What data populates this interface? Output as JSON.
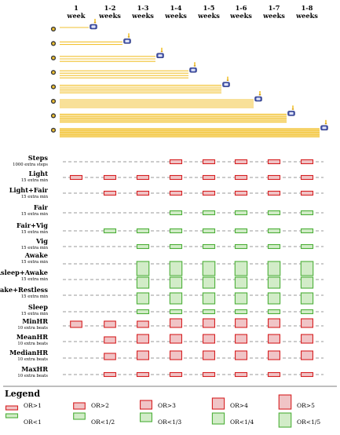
{
  "colors": {
    "timeline": "#f2c230",
    "clock": "#3f4fa8",
    "positive_stroke": "#d62022",
    "positive_fill": "#f0c4c6",
    "negative_stroke": "#4caf38",
    "negative_fill": "#d2ecc8",
    "dashed": "#9a9a9a"
  },
  "weeks": [
    {
      "num": "1",
      "unit": "week"
    },
    {
      "num": "1-2",
      "unit": "weeks"
    },
    {
      "num": "1-3",
      "unit": "weeks"
    },
    {
      "num": "1-4",
      "unit": "weeks"
    },
    {
      "num": "1-5",
      "unit": "weeks"
    },
    {
      "num": "1-6",
      "unit": "weeks"
    },
    {
      "num": "1-7",
      "unit": "weeks"
    },
    {
      "num": "1-8",
      "unit": "weeks"
    }
  ],
  "rows": [
    {
      "label": "Steps",
      "sub": "1000 extra steps",
      "marks": [
        null,
        null,
        null,
        "pos1",
        "pos1",
        "pos1",
        "pos1",
        "pos1"
      ]
    },
    {
      "label": "Light",
      "sub": "15 extra min",
      "marks": [
        "pos1",
        "pos1",
        "pos1",
        "pos1",
        "pos1",
        "pos1",
        "pos1",
        "pos1"
      ]
    },
    {
      "label": "Light+Fair",
      "sub": "15 extra min",
      "marks": [
        null,
        "pos1",
        "pos1",
        "pos1",
        "pos1",
        "pos1",
        "pos1",
        "pos1"
      ]
    },
    {
      "label": "Fair",
      "sub": "15 extra min",
      "marks": [
        null,
        null,
        null,
        "neg1",
        "neg1",
        "neg1",
        "neg1",
        "neg1"
      ]
    },
    {
      "label": "Fair+Vig",
      "sub": "15 extra min",
      "marks": [
        null,
        "neg1",
        "neg1",
        "neg1",
        "neg1",
        "neg1",
        "neg1",
        "neg1"
      ]
    },
    {
      "label": "Vig",
      "sub": "15 extra min",
      "marks": [
        null,
        null,
        "neg1",
        "neg1",
        "neg1",
        "neg1",
        "neg1",
        "neg1"
      ]
    },
    {
      "label": "Awake",
      "sub": "15 extra min",
      "marks": [
        null,
        null,
        "neg5",
        "neg5",
        "neg5",
        "neg5",
        "neg5",
        "neg5"
      ]
    },
    {
      "label": "Asleep+Awake",
      "sub": "15 extra min",
      "marks": [
        null,
        null,
        "neg4",
        "neg4",
        "neg4",
        "neg4",
        "neg4",
        "neg4"
      ]
    },
    {
      "label": "Awake+Restless",
      "sub": "15 extra min",
      "marks": [
        null,
        null,
        "neg4",
        "neg4",
        "neg4",
        "neg4",
        "neg4",
        "neg4"
      ]
    },
    {
      "label": "Sleep",
      "sub": "15 extra min",
      "marks": [
        null,
        null,
        "neg1",
        "neg1",
        "neg1",
        "neg1",
        "neg1",
        "neg1"
      ]
    },
    {
      "label": "MinHR",
      "sub": "10 extra beats",
      "marks": [
        "pos2",
        "pos2",
        "pos2",
        "pos3",
        "pos3",
        "pos3",
        "pos3",
        "pos3"
      ]
    },
    {
      "label": "MeanHR",
      "sub": "10 extra beats",
      "marks": [
        null,
        "pos2",
        "pos3",
        "pos3",
        "pos3",
        "pos3",
        "pos3",
        "pos3"
      ]
    },
    {
      "label": "MedianHR",
      "sub": "10 extra beats",
      "marks": [
        null,
        "pos2",
        "pos3",
        "pos3",
        "pos3",
        "pos3",
        "pos3",
        "pos3"
      ]
    },
    {
      "label": "MaxHR",
      "sub": "10 extra beats",
      "marks": [
        null,
        "pos1",
        "pos1",
        "pos1",
        "pos1",
        "pos1",
        "pos1",
        "pos1"
      ]
    }
  ],
  "legend": {
    "title": "Legend",
    "items": [
      {
        "code": "pos1",
        "label": "OR>1"
      },
      {
        "code": "pos2",
        "label": "OR>2"
      },
      {
        "code": "pos3",
        "label": "OR>3"
      },
      {
        "code": "pos4",
        "label": "OR>4"
      },
      {
        "code": "pos5",
        "label": "OR>5"
      },
      {
        "code": "neg1",
        "label": "OR<1"
      },
      {
        "code": "neg2",
        "label": "OR<1/2"
      },
      {
        "code": "neg3",
        "label": "OR<1/3"
      },
      {
        "code": "neg4",
        "label": "OR<1/4"
      },
      {
        "code": "neg5",
        "label": "OR<1/5"
      }
    ]
  }
}
